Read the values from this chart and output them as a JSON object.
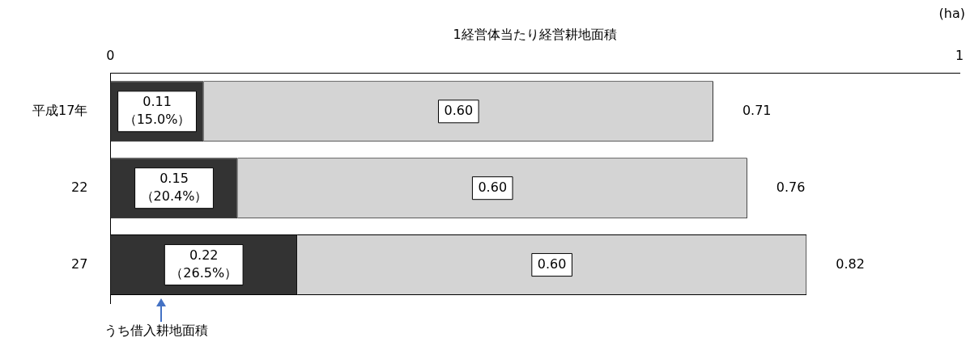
{
  "chart_data": {
    "type": "bar",
    "orientation": "horizontal",
    "stacked": true,
    "xlabel": "1経営体当たり経営耕地面積",
    "categories": [
      "平成17年",
      "22",
      "27"
    ],
    "series": [
      {
        "color": "#333333",
        "values": [
          0.11,
          0.15,
          0.22
        ],
        "value_labels": [
          "0.11\n（15.0%）",
          "0.15\n（20.4%）",
          "0.22\n（26.5%）"
        ]
      },
      {
        "color": "#d4d4d4",
        "values": [
          0.6,
          0.6,
          0.6
        ],
        "value_labels": [
          "0.60",
          "0.60",
          "0.60"
        ]
      }
    ],
    "totals": [
      "0.71",
      "0.76",
      "0.82"
    ],
    "xlim": [
      0,
      1
    ],
    "xticks": [
      0,
      1
    ],
    "grid": false,
    "legend": false,
    "annotations": [
      "(ha)",
      {
        "text": "うち借入耕地面積",
        "x": 0.06,
        "y": "27"
      }
    ]
  }
}
